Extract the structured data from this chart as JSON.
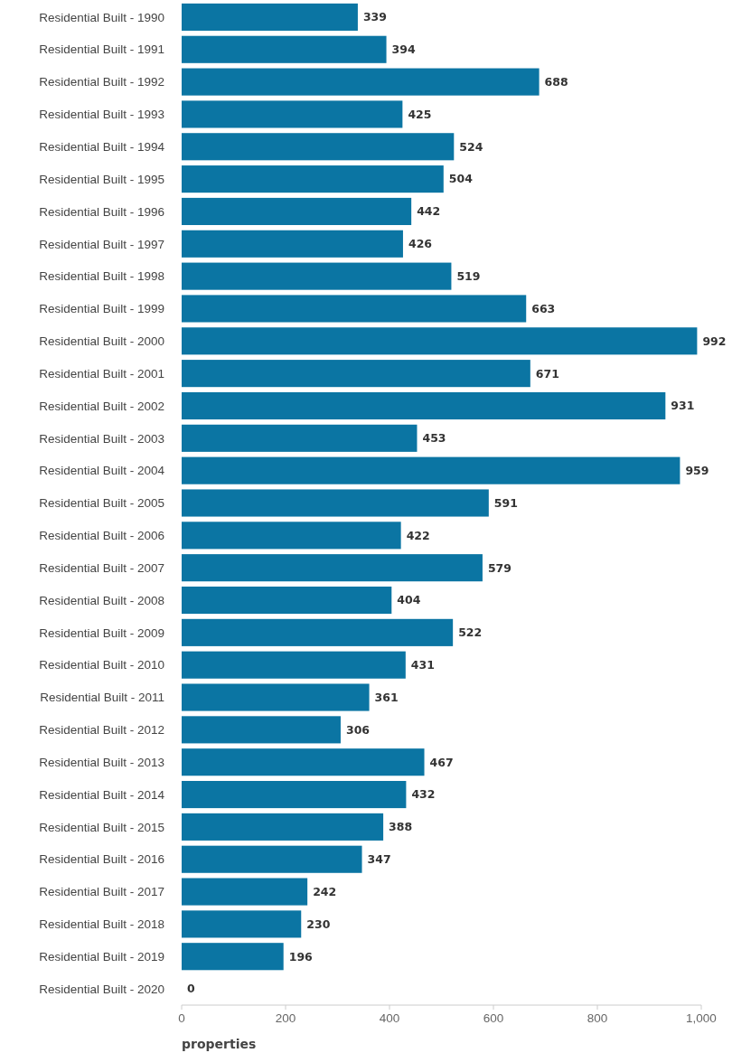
{
  "chart_data": {
    "type": "bar",
    "orientation": "horizontal",
    "xlabel": "properties",
    "categories": [
      "Residential Built - 1990",
      "Residential Built - 1991",
      "Residential Built - 1992",
      "Residential Built - 1993",
      "Residential Built - 1994",
      "Residential Built - 1995",
      "Residential Built - 1996",
      "Residential Built - 1997",
      "Residential Built - 1998",
      "Residential Built - 1999",
      "Residential Built - 2000",
      "Residential Built - 2001",
      "Residential Built - 2002",
      "Residential Built - 2003",
      "Residential Built - 2004",
      "Residential Built - 2005",
      "Residential Built - 2006",
      "Residential Built - 2007",
      "Residential Built - 2008",
      "Residential Built - 2009",
      "Residential Built - 2010",
      "Residential Built - 2011",
      "Residential Built - 2012",
      "Residential Built - 2013",
      "Residential Built - 2014",
      "Residential Built - 2015",
      "Residential Built - 2016",
      "Residential Built - 2017",
      "Residential Built - 2018",
      "Residential Built - 2019",
      "Residential Built - 2020"
    ],
    "values": [
      339,
      394,
      688,
      425,
      524,
      504,
      442,
      426,
      519,
      663,
      992,
      671,
      931,
      453,
      959,
      591,
      422,
      579,
      404,
      522,
      431,
      361,
      306,
      467,
      432,
      388,
      347,
      242,
      230,
      196,
      0
    ],
    "color": "#0b75a3",
    "data_labels": true,
    "grid": false,
    "xlim": [
      0,
      1000
    ],
    "xticks": [
      0,
      200,
      400,
      600,
      800,
      {
        "value": 1000,
        "label": "1,000"
      }
    ]
  }
}
